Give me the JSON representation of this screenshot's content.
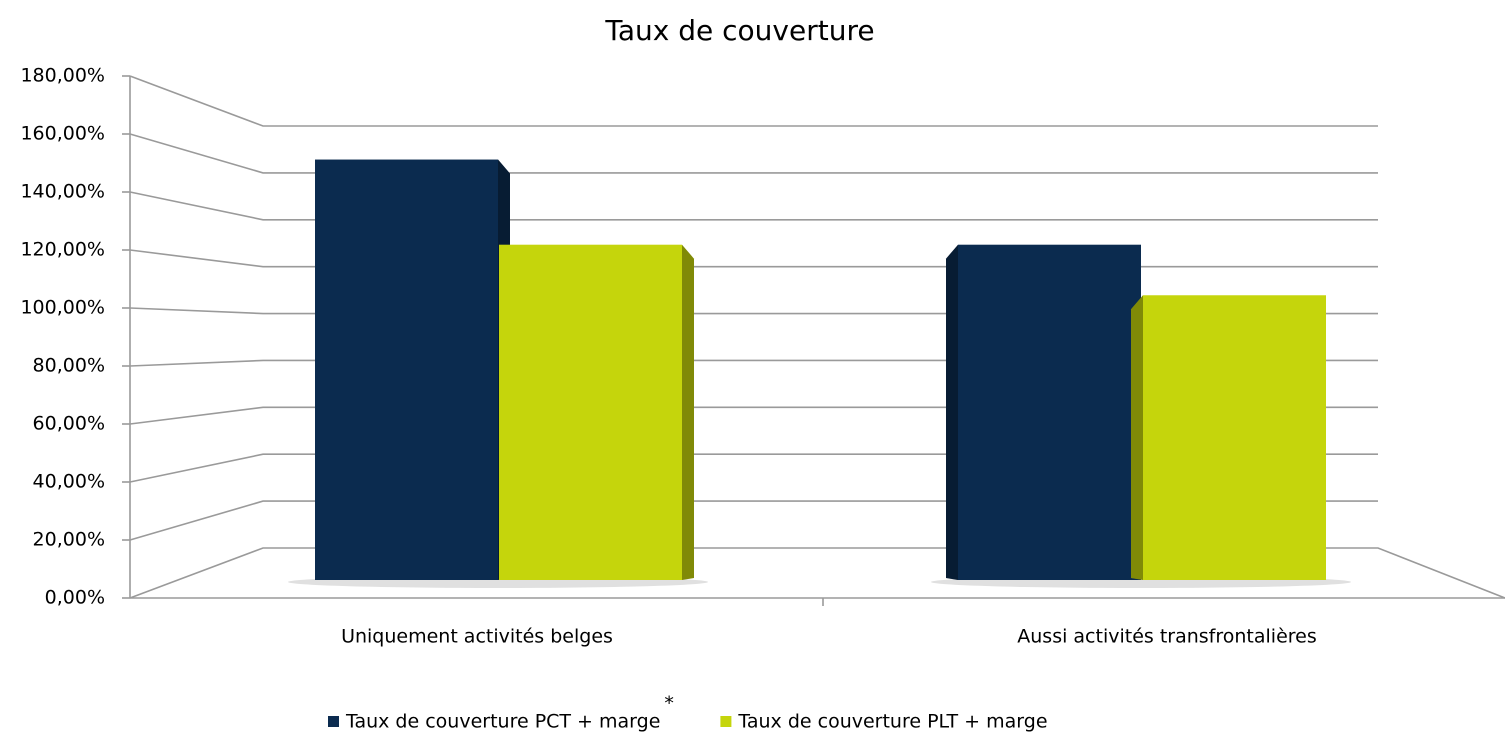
{
  "chart_data": {
    "type": "bar3d",
    "title": "Taux de couverture",
    "categories": [
      "Uniquement activités belges",
      "Aussi activités transfrontalières"
    ],
    "series": [
      {
        "name": "Taux de couverture PCT + marge",
        "color": "#0b2b4f",
        "values": [
          158,
          126
        ]
      },
      {
        "name": "Taux de couverture PLT + marge",
        "color": "#c5d50c",
        "values": [
          126,
          107
        ]
      }
    ],
    "legend_note": "*",
    "ylim": [
      0,
      180
    ],
    "yticks": [
      {
        "value": 0,
        "label": "0,00%"
      },
      {
        "value": 20,
        "label": "20,00%"
      },
      {
        "value": 40,
        "label": "40,00%"
      },
      {
        "value": 60,
        "label": "60,00%"
      },
      {
        "value": 80,
        "label": "80,00%"
      },
      {
        "value": 100,
        "label": "100,00%"
      },
      {
        "value": 120,
        "label": "120,00%"
      },
      {
        "value": 140,
        "label": "140,00%"
      },
      {
        "value": 160,
        "label": "160,00%"
      },
      {
        "value": 180,
        "label": "180,00%"
      }
    ],
    "grid": true,
    "legend": "bottom"
  }
}
